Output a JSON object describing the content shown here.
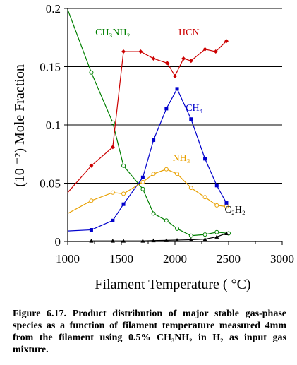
{
  "chart_data": {
    "type": "line",
    "ylabel": "(10 ⁻²) Mole Fraction",
    "xlabel": "Filament Temperature ( °C)",
    "xlim": [
      1000,
      3000
    ],
    "ylim": [
      0,
      0.2
    ],
    "x_ticks": [
      "1000",
      "1500",
      "2000",
      "2500",
      "3000"
    ],
    "y_ticks": [
      "0",
      "0.05",
      "0.1",
      "0.15",
      "0.2"
    ],
    "grid": "horizontal",
    "series": [
      {
        "name": "CH₃NH₂",
        "color": "#008000",
        "marker": "open-circle",
        "x": [
          1000,
          1220,
          1420,
          1520,
          1700,
          1800,
          1920,
          2020,
          2150,
          2280,
          2390,
          2500
        ],
        "y": [
          0.199,
          0.145,
          0.102,
          0.065,
          0.045,
          0.024,
          0.018,
          0.011,
          0.005,
          0.006,
          0.008,
          0.007
        ]
      },
      {
        "name": "HCN",
        "color": "#cc0000",
        "marker": "diamond",
        "x": [
          1000,
          1220,
          1420,
          1520,
          1680,
          1800,
          1930,
          2000,
          2080,
          2150,
          2280,
          2380,
          2480
        ],
        "y": [
          0.042,
          0.065,
          0.081,
          0.163,
          0.163,
          0.157,
          0.153,
          0.142,
          0.157,
          0.155,
          0.165,
          0.163,
          0.172
        ]
      },
      {
        "name": "CH₄",
        "color": "#0000cc",
        "marker": "filled-square",
        "x": [
          1000,
          1220,
          1420,
          1520,
          1700,
          1800,
          1920,
          2020,
          2150,
          2280,
          2390,
          2480
        ],
        "y": [
          0.009,
          0.01,
          0.018,
          0.032,
          0.055,
          0.087,
          0.114,
          0.131,
          0.105,
          0.071,
          0.048,
          0.033
        ]
      },
      {
        "name": "NH₃",
        "color": "#e8a000",
        "marker": "open-circle",
        "x": [
          1000,
          1220,
          1420,
          1520,
          1700,
          1800,
          1920,
          2020,
          2150,
          2280,
          2390,
          2480
        ],
        "y": [
          0.024,
          0.035,
          0.042,
          0.041,
          0.051,
          0.058,
          0.062,
          0.058,
          0.046,
          0.038,
          0.031,
          0.03
        ]
      },
      {
        "name": "C₂H₂",
        "color": "#000000",
        "marker": "filled-triangle",
        "x": [
          1220,
          1420,
          1520,
          1700,
          1800,
          1920,
          2020,
          2150,
          2280,
          2390,
          2480
        ],
        "y": [
          0.0005,
          0.0005,
          0.0005,
          0.0005,
          0.0008,
          0.001,
          0.0012,
          0.0015,
          0.002,
          0.004,
          0.007
        ]
      }
    ],
    "series_labels": [
      {
        "text": "CH₃NH₂",
        "color": "#008000",
        "x": 1420,
        "y": 0.177
      },
      {
        "text": "HCN",
        "color": "#cc0000",
        "x": 2130,
        "y": 0.177
      },
      {
        "text": "CH₄",
        "color": "#0000cc",
        "x": 2180,
        "y": 0.112
      },
      {
        "text": "NH₃",
        "color": "#e8a000",
        "x": 2060,
        "y": 0.069
      },
      {
        "text": "C₂H₂",
        "color": "#000000",
        "x": 2560,
        "y": 0.025
      }
    ]
  },
  "caption": "Figure 6.17. Product distribution of major stable gas-phase species as a function of filament temperature measured 4mm from the filament using 0.5% CH₃NH₂ in H₂ as input gas mixture."
}
